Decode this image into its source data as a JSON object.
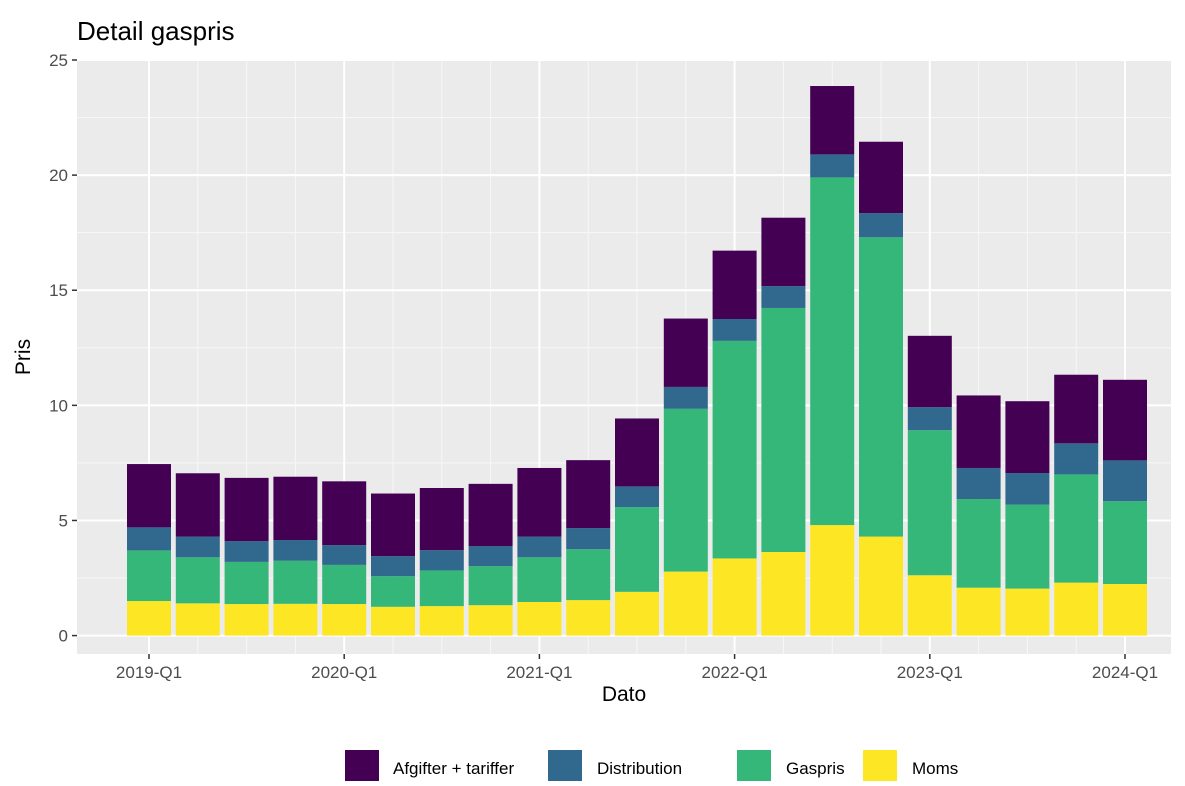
{
  "chart_data": {
    "type": "bar",
    "stacked": true,
    "title": "Detail gaspris",
    "xlabel": "Dato",
    "ylabel": "Pris",
    "ylim": [
      -0.8,
      25
    ],
    "yticks": [
      0,
      5,
      10,
      15,
      20,
      25
    ],
    "grid": true,
    "legend_position": "bottom",
    "categories": [
      "2019-Q1",
      "2019-Q2",
      "2019-Q3",
      "2019-Q4",
      "2020-Q1",
      "2020-Q2",
      "2020-Q3",
      "2020-Q4",
      "2021-Q1",
      "2021-Q2",
      "2021-Q3",
      "2021-Q4",
      "2022-Q1",
      "2022-Q2",
      "2022-Q3",
      "2022-Q4",
      "2023-Q1",
      "2023-Q2",
      "2023-Q3",
      "2023-Q4",
      "2024-Q1"
    ],
    "xtick_labels": [
      "2019-Q1",
      "2020-Q1",
      "2021-Q1",
      "2022-Q1",
      "2023-Q1",
      "2024-Q1"
    ],
    "series": [
      {
        "name": "Moms",
        "color": "#FDE725",
        "values": [
          1.5,
          1.4,
          1.37,
          1.38,
          1.37,
          1.25,
          1.28,
          1.32,
          1.46,
          1.54,
          1.9,
          2.78,
          3.35,
          3.63,
          4.8,
          4.3,
          2.62,
          2.08,
          2.04,
          2.3,
          2.24
        ]
      },
      {
        "name": "Gaspris",
        "color": "#35B779",
        "values": [
          2.2,
          2.0,
          1.83,
          1.87,
          1.7,
          1.33,
          1.55,
          1.7,
          1.94,
          2.21,
          3.68,
          7.07,
          9.45,
          10.6,
          15.1,
          13.0,
          6.3,
          3.85,
          3.65,
          4.7,
          3.6
        ]
      },
      {
        "name": "Distribution",
        "color": "#31688E",
        "values": [
          1.0,
          0.9,
          0.9,
          0.9,
          0.86,
          0.87,
          0.88,
          0.87,
          0.9,
          0.92,
          0.9,
          0.95,
          0.95,
          0.95,
          1.0,
          1.05,
          1.0,
          1.35,
          1.37,
          1.35,
          1.77
        ]
      },
      {
        "name": "Afgifter + tariffer",
        "color": "#440154",
        "values": [
          2.75,
          2.75,
          2.75,
          2.75,
          2.77,
          2.72,
          2.7,
          2.7,
          2.98,
          2.95,
          2.95,
          2.97,
          2.97,
          2.97,
          2.97,
          3.1,
          3.1,
          3.15,
          3.12,
          2.98,
          3.5
        ]
      }
    ],
    "legend_order": [
      "Afgifter + tariffer",
      "Distribution",
      "Gaspris",
      "Moms"
    ]
  }
}
